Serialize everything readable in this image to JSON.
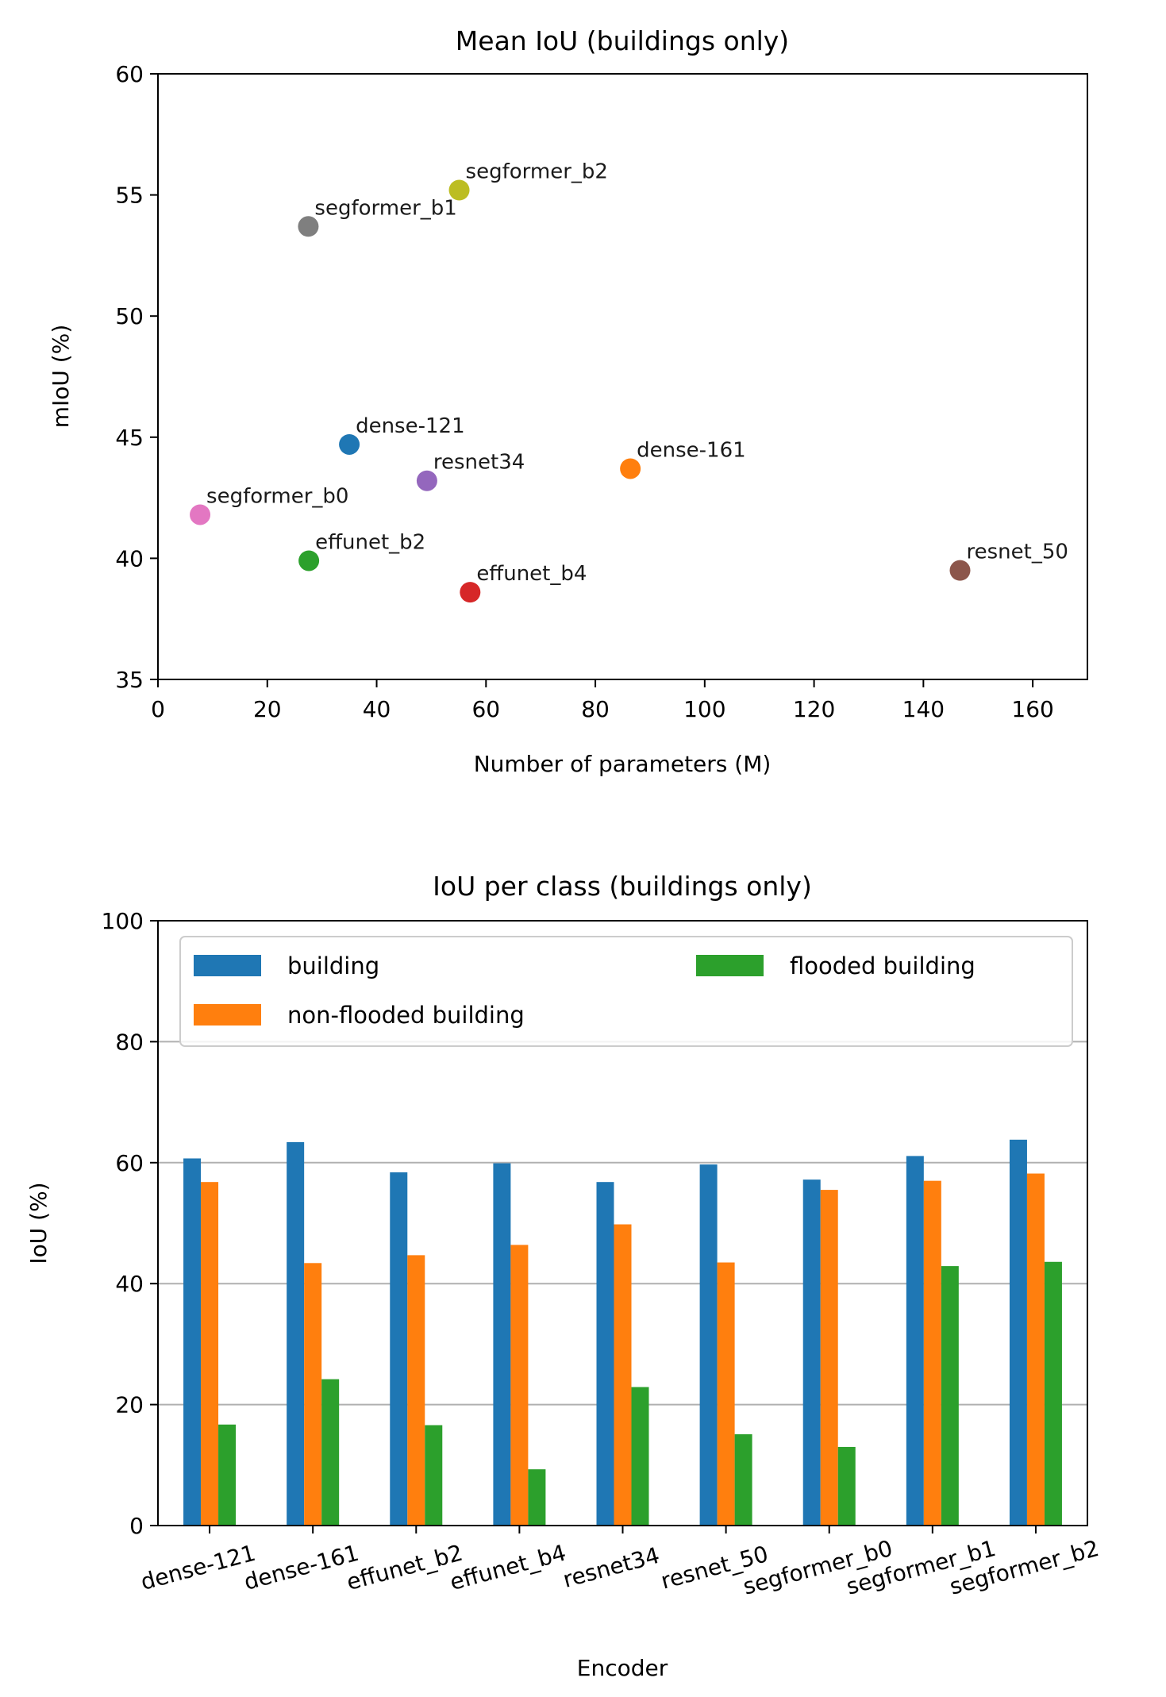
{
  "chart_data": [
    {
      "type": "scatter",
      "title": "Mean IoU (buildings only)",
      "xlabel": "Number of parameters (M)",
      "ylabel": "mIoU (%)",
      "xlim": [
        0,
        170
      ],
      "ylim": [
        35,
        60
      ],
      "xticks": [
        0,
        20,
        40,
        60,
        80,
        100,
        120,
        140,
        160
      ],
      "yticks": [
        35,
        40,
        45,
        50,
        55,
        60
      ],
      "grid": false,
      "points": [
        {
          "label": "dense-121",
          "x": 35.0,
          "y": 44.7,
          "color": "#1f77b4"
        },
        {
          "label": "dense-161",
          "x": 86.4,
          "y": 43.7,
          "color": "#ff7f0e"
        },
        {
          "label": "effunet_b2",
          "x": 27.6,
          "y": 39.9,
          "color": "#2ca02c"
        },
        {
          "label": "effunet_b4",
          "x": 57.1,
          "y": 38.6,
          "color": "#d62728"
        },
        {
          "label": "resnet34",
          "x": 49.2,
          "y": 43.2,
          "color": "#9467bd"
        },
        {
          "label": "resnet_50",
          "x": 146.7,
          "y": 39.5,
          "color": "#8c564b"
        },
        {
          "label": "segformer_b0",
          "x": 7.7,
          "y": 41.8,
          "color": "#e377c2"
        },
        {
          "label": "segformer_b1",
          "x": 27.5,
          "y": 53.7,
          "color": "#7f7f7f"
        },
        {
          "label": "segformer_b2",
          "x": 55.1,
          "y": 55.2,
          "color": "#bcbd22"
        }
      ]
    },
    {
      "type": "bar",
      "title": "IoU per class (buildings only)",
      "xlabel": "Encoder",
      "ylabel": "IoU (%)",
      "ylim": [
        0,
        100
      ],
      "yticks": [
        0,
        20,
        40,
        60,
        80,
        100
      ],
      "grid": true,
      "legend_position": "upper center, 2 columns",
      "categories": [
        "dense-121",
        "dense-161",
        "effunet_b2",
        "effunet_b4",
        "resnet34",
        "resnet_50",
        "segformer_b0",
        "segformer_b1",
        "segformer_b2"
      ],
      "series": [
        {
          "name": "building",
          "color": "#1f77b4",
          "values": [
            60.7,
            63.4,
            58.4,
            59.9,
            56.8,
            59.7,
            57.2,
            61.1,
            63.8
          ]
        },
        {
          "name": "non-flooded building",
          "color": "#ff7f0e",
          "values": [
            56.8,
            43.4,
            44.7,
            46.4,
            49.8,
            43.5,
            55.5,
            57.0,
            58.2
          ]
        },
        {
          "name": "flooded building",
          "color": "#2ca02c",
          "values": [
            16.7,
            24.2,
            16.6,
            9.3,
            22.9,
            15.1,
            13.0,
            42.9,
            43.6
          ]
        }
      ]
    }
  ]
}
